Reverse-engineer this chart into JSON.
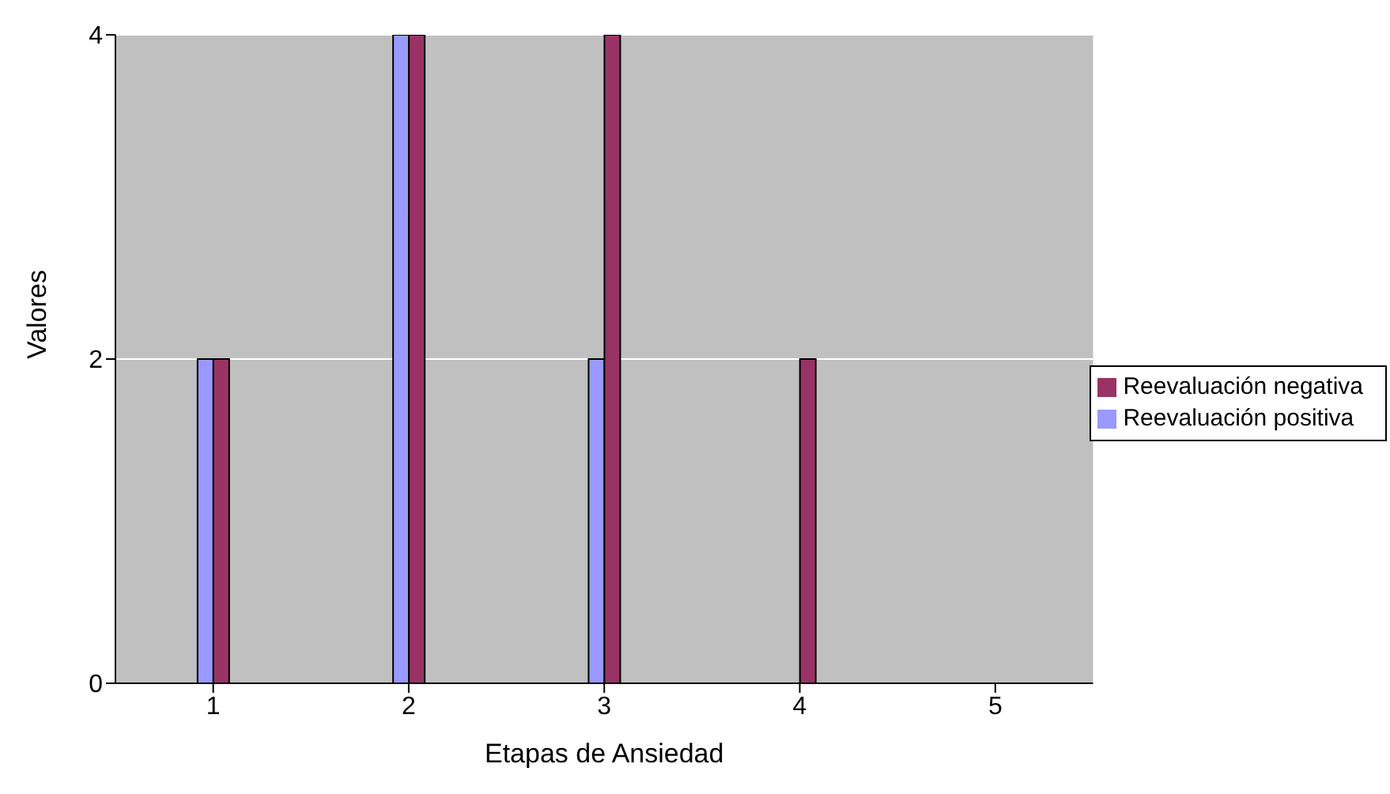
{
  "chart_data": {
    "type": "bar",
    "xlabel": "Etapas de Ansiedad",
    "ylabel": "Valores",
    "categories": [
      "1",
      "2",
      "3",
      "4",
      "5"
    ],
    "series": [
      {
        "name": "Reevaluación positiva",
        "color": "#9999ff",
        "values": [
          2,
          4,
          2,
          0,
          0
        ]
      },
      {
        "name": "Reevaluación negativa",
        "color": "#993366",
        "values": [
          2,
          4,
          4,
          2,
          0
        ]
      }
    ],
    "ylim": [
      0,
      4
    ],
    "yticks": [
      0,
      2,
      4
    ],
    "grid": "y",
    "legend": "right"
  }
}
